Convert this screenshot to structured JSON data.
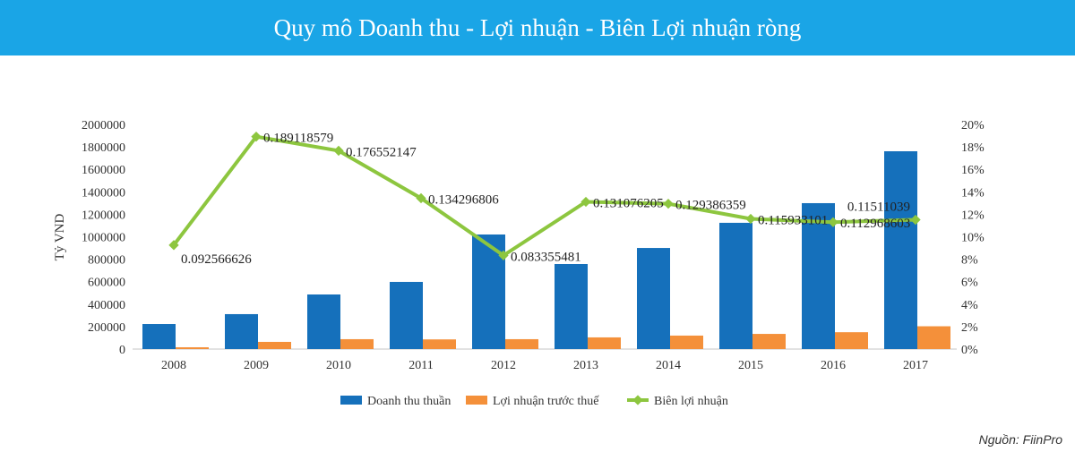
{
  "title": "Quy mô Doanh thu - Lợi nhuận - Biên Lợi nhuận ròng",
  "source": "Nguồn: FiinPro",
  "chart_data": {
    "type": "bar+line",
    "categories": [
      "2008",
      "2009",
      "2010",
      "2011",
      "2012",
      "2013",
      "2014",
      "2015",
      "2016",
      "2017"
    ],
    "series": [
      {
        "name": "Doanh thu thuần",
        "type": "bar",
        "axis": "left",
        "color": "#1570bb",
        "values": [
          223000,
          311000,
          486000,
          598000,
          1020000,
          757000,
          900000,
          1124000,
          1299000,
          1761000
        ]
      },
      {
        "name": "Lợi nhuận trước thuế",
        "type": "bar",
        "axis": "left",
        "color": "#f4903a",
        "values": [
          16000,
          64000,
          88000,
          86000,
          88000,
          104000,
          120000,
          135000,
          150000,
          203000
        ]
      },
      {
        "name": "Biên lợi nhuận",
        "type": "line",
        "axis": "right",
        "color": "#8dc63f",
        "values": [
          0.092566626,
          0.189118579,
          0.176552147,
          0.134296806,
          0.083355481,
          0.131076205,
          0.129386359,
          0.115933101,
          0.112968603,
          0.11511039
        ],
        "labels": [
          "0.092566626",
          "0.189118579",
          "0.176552147",
          "0.134296806",
          "0.083355481",
          "0.131076205",
          "0.129386359",
          "0.115933101",
          "0.112968603",
          "0.11511039"
        ]
      }
    ],
    "ylabel": "Tỷ VND",
    "ylim": [
      0,
      2000000
    ],
    "yticks": [
      "0",
      "200000",
      "400000",
      "600000",
      "800000",
      "1000000",
      "1200000",
      "1400000",
      "1600000",
      "1800000",
      "2000000"
    ],
    "y2lim": [
      0,
      0.2
    ],
    "y2ticks": [
      "0%",
      "2%",
      "4%",
      "6%",
      "8%",
      "10%",
      "12%",
      "14%",
      "16%",
      "18%",
      "20%"
    ],
    "legend": "bottom"
  }
}
